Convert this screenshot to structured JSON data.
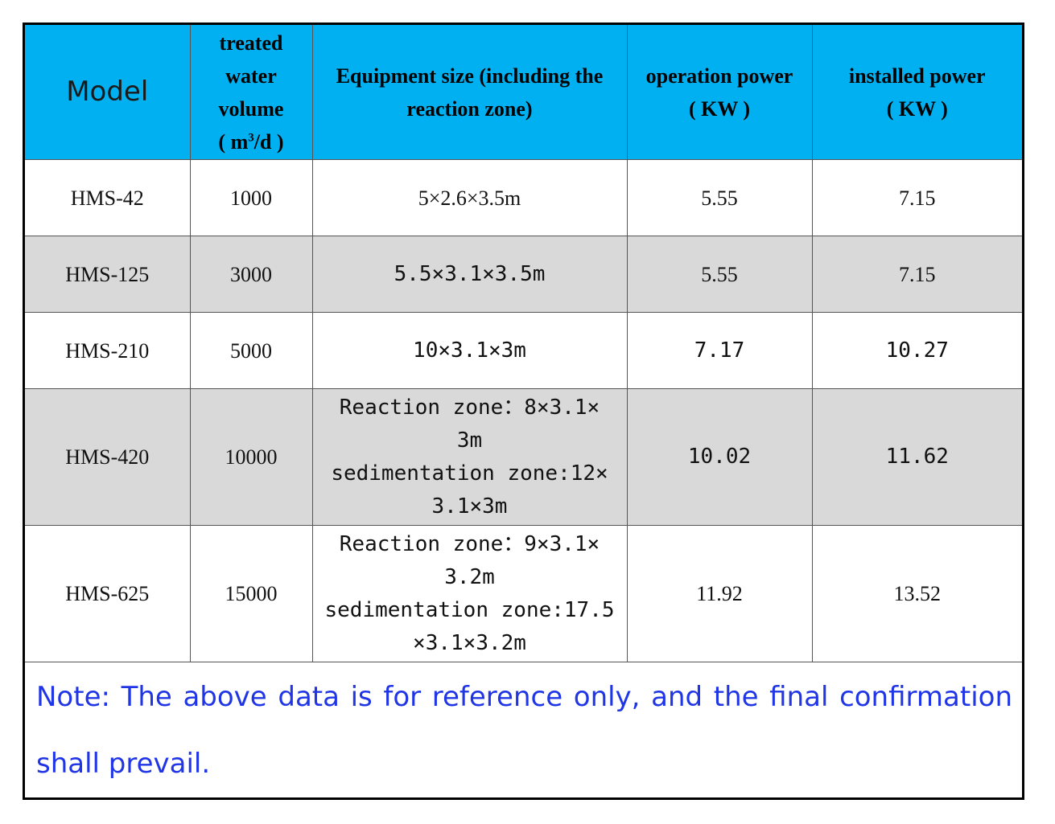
{
  "header": {
    "model": "Model",
    "volume_lines": [
      "treated",
      "water",
      "volume",
      "( m",
      "3",
      "/d )"
    ],
    "size_lines": [
      "Equipment size (including the",
      "reaction zone)"
    ],
    "op_power_lines": [
      "operation power",
      "( KW )"
    ],
    "inst_power_lines": [
      "installed power",
      "( KW )"
    ]
  },
  "rows": [
    {
      "model": "HMS-42",
      "volume": "1000",
      "size_lines": [
        "5×2.6×3.5m"
      ],
      "op_power": "5.55",
      "inst_power": "7.15"
    },
    {
      "model": "HMS-125",
      "volume": "3000",
      "size_lines": [
        "5.5×3.1×3.5m"
      ],
      "op_power": "5.55",
      "inst_power": "7.15"
    },
    {
      "model": "HMS-210",
      "volume": "5000",
      "size_lines": [
        "10×3.1×3m"
      ],
      "op_power": "7.17",
      "inst_power": "10.27"
    },
    {
      "model": "HMS-420",
      "volume": "10000",
      "size_lines": [
        "Reaction zone：8×3.1×",
        "3m",
        "sedimentation zone:12×",
        "3.1×3m"
      ],
      "op_power": "10.02",
      "inst_power": "11.62"
    },
    {
      "model": "HMS-625",
      "volume": "15000",
      "size_lines": [
        "Reaction zone：9×3.1×",
        "3.2m",
        "sedimentation zone:17.5",
        "×3.1×3.2m"
      ],
      "op_power": "11.92",
      "inst_power": "13.52"
    }
  ],
  "note": "Note: The above data is for reference only, and the final confirmation shall prevail."
}
